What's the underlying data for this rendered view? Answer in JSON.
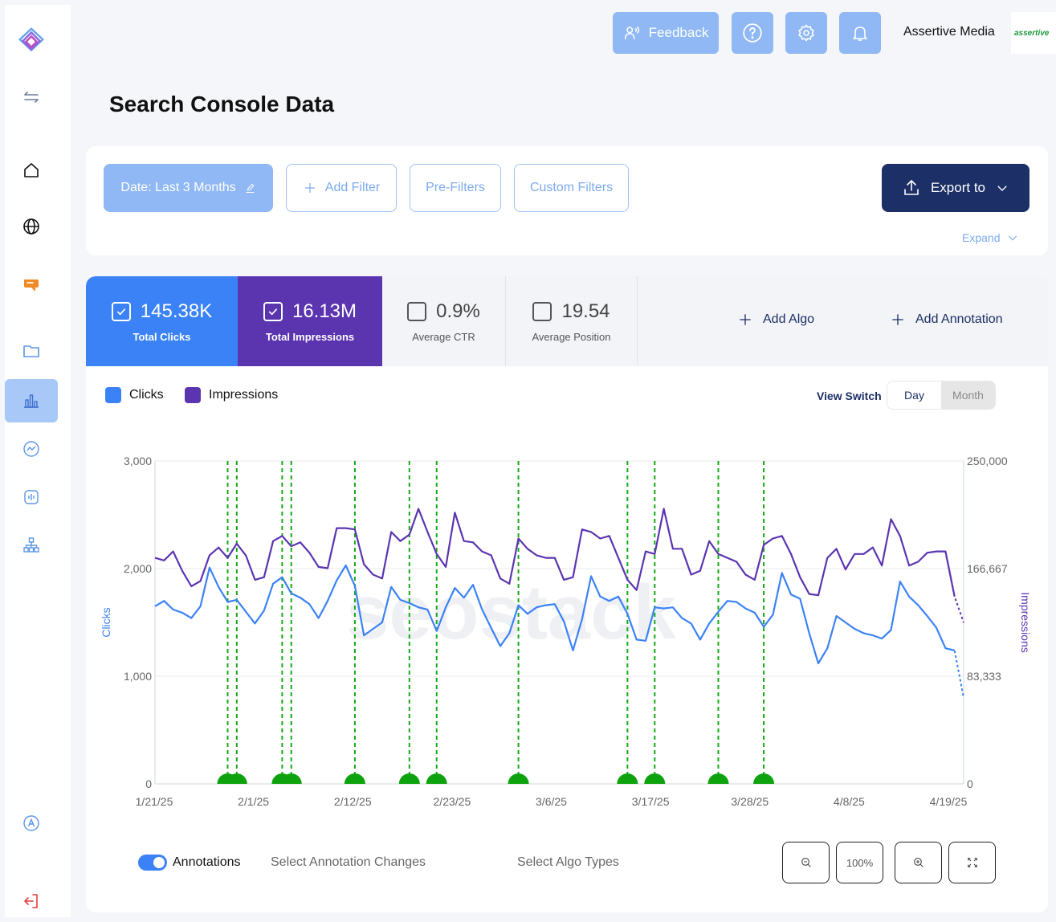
{
  "sidebar": {
    "items": [
      {
        "name": "logo-icon"
      },
      {
        "name": "collapse-toggle-icon"
      },
      {
        "name": "home-icon"
      },
      {
        "name": "globe-icon"
      },
      {
        "name": "chat-icon",
        "color": "#f08a24"
      },
      {
        "name": "folder-icon"
      },
      {
        "name": "bar-chart-icon",
        "active": true
      },
      {
        "name": "trend-chart-icon"
      },
      {
        "name": "robot-icon"
      },
      {
        "name": "hierarchy-icon"
      },
      {
        "name": "accessibility-icon"
      },
      {
        "name": "logout-icon",
        "color": "#e0413a"
      }
    ]
  },
  "topbar": {
    "feedback_label": "Feedback",
    "company_name": "Assertive Media",
    "logo_text": "assertive"
  },
  "page": {
    "title": "Search Console Data"
  },
  "filters": {
    "date_label": "Date: Last 3 Months",
    "add_filter_label": "Add Filter",
    "pre_filters_label": "Pre-Filters",
    "custom_filters_label": "Custom Filters",
    "export_label": "Export to",
    "expand_label": "Expand"
  },
  "metrics": {
    "clicks": {
      "value": "145.38K",
      "label": "Total Clicks",
      "checked": true
    },
    "impressions": {
      "value": "16.13M",
      "label": "Total Impressions",
      "checked": true
    },
    "ctr": {
      "value": "0.9%",
      "label": "Average CTR",
      "checked": false
    },
    "position": {
      "value": "19.54",
      "label": "Average Position",
      "checked": false
    },
    "add_algo_label": "Add Algo",
    "add_annotation_label": "Add Annotation"
  },
  "legend": {
    "clicks_label": "Clicks",
    "impressions_label": "Impressions",
    "clicks_color": "#3b82f6",
    "impressions_color": "#5b35b0"
  },
  "view_switch": {
    "label": "View Switch",
    "day_label": "Day",
    "month_label": "Month",
    "selected": "Day"
  },
  "chart_data": {
    "type": "line",
    "watermark": "seostack",
    "ylabel": "Clicks",
    "y2label": "Impressions",
    "ylim": [
      0,
      3000
    ],
    "y2lim": [
      0,
      250000
    ],
    "y_ticks": [
      "0",
      "1,000",
      "2,000",
      "3,000"
    ],
    "y2_ticks": [
      "0",
      "83,333",
      "166,667",
      "250,000"
    ],
    "x_tick_labels": [
      "1/21/25",
      "2/1/25",
      "2/12/25",
      "2/23/25",
      "3/6/25",
      "3/17/25",
      "3/28/25",
      "4/8/25",
      "4/19/25"
    ],
    "x_start": "1/21/25",
    "x_end": "4/21/25",
    "dashed_tail_points": 2,
    "series": [
      {
        "name": "Clicks",
        "axis": "left",
        "color": "#3b82f6",
        "values": [
          1650,
          1700,
          1620,
          1590,
          1540,
          1650,
          2010,
          1830,
          1690,
          1710,
          1600,
          1490,
          1610,
          1860,
          1920,
          1770,
          1730,
          1670,
          1540,
          1700,
          1890,
          2030,
          1840,
          1380,
          1440,
          1500,
          1830,
          1710,
          1680,
          1640,
          1620,
          1420,
          1640,
          1820,
          1730,
          1850,
          1620,
          1450,
          1280,
          1400,
          1660,
          1580,
          1640,
          1660,
          1670,
          1510,
          1240,
          1530,
          1930,
          1740,
          1700,
          1740,
          1580,
          1340,
          1330,
          1640,
          1630,
          1640,
          1540,
          1490,
          1340,
          1490,
          1600,
          1700,
          1690,
          1630,
          1590,
          1460,
          1570,
          1960,
          1760,
          1720,
          1400,
          1120,
          1260,
          1560,
          1500,
          1440,
          1400,
          1380,
          1350,
          1430,
          1880,
          1740,
          1660,
          1560,
          1450,
          1260,
          1240,
          800
        ]
      },
      {
        "name": "Impressions",
        "axis": "right",
        "color": "#5b35b0",
        "values": [
          175000,
          173000,
          180000,
          165000,
          153000,
          157000,
          177000,
          183000,
          175000,
          186000,
          177000,
          158000,
          160000,
          188000,
          192000,
          184000,
          187000,
          179000,
          168000,
          167000,
          198000,
          198000,
          197000,
          170000,
          162000,
          159000,
          195000,
          188000,
          193000,
          213000,
          195000,
          178000,
          168000,
          210000,
          188000,
          187000,
          180000,
          177000,
          159000,
          155000,
          190000,
          182000,
          177000,
          175000,
          175000,
          158000,
          160000,
          197000,
          195000,
          190000,
          192000,
          175000,
          158000,
          150000,
          180000,
          178000,
          213000,
          182000,
          182000,
          162000,
          165000,
          188000,
          178000,
          175000,
          172000,
          162000,
          158000,
          185000,
          190000,
          192000,
          178000,
          160000,
          147000,
          146000,
          175000,
          182000,
          166000,
          178000,
          178000,
          183000,
          169000,
          205000,
          192000,
          169000,
          172000,
          179000,
          180000,
          180000,
          145000,
          125000
        ]
      }
    ],
    "annotation_days": [
      8,
      9,
      14,
      15,
      22,
      28,
      31,
      40,
      52,
      55,
      62,
      67
    ]
  },
  "bottom": {
    "annotations_label": "Annotations",
    "select_annotation_label": "Select Annotation Changes",
    "select_algo_label": "Select Algo Types",
    "zoom_reset_label": "100%"
  }
}
